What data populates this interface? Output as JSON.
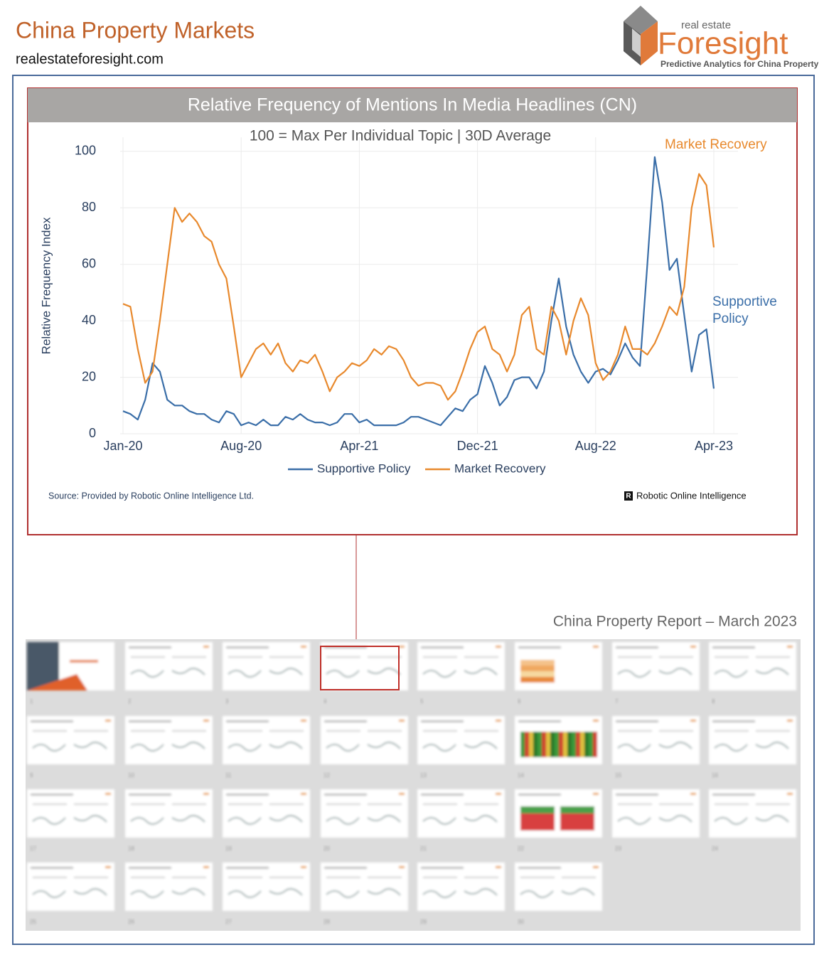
{
  "header": {
    "title": "China Property Markets",
    "url": "realestateforesight.com"
  },
  "logo": {
    "small": "real estate",
    "brand": "Foresight",
    "tagline": "Predictive Analytics for China Property"
  },
  "chart_data": {
    "type": "line",
    "title": "Relative Frequency of Mentions In Media Headlines (CN)",
    "subtitle": "100 = Max Per Individual Topic | 30D Average",
    "y_label": "Relative Frequency Index",
    "categories": [
      "Jan-20",
      null,
      null,
      null,
      null,
      null,
      null,
      null,
      null,
      null,
      null,
      null,
      null,
      null,
      null,
      null,
      "Aug-20",
      null,
      null,
      null,
      null,
      null,
      null,
      null,
      null,
      null,
      null,
      null,
      null,
      null,
      null,
      null,
      "Apr-21",
      null,
      null,
      null,
      null,
      null,
      null,
      null,
      null,
      null,
      null,
      null,
      null,
      null,
      null,
      null,
      "Dec-21",
      null,
      null,
      null,
      null,
      null,
      null,
      null,
      null,
      null,
      null,
      null,
      null,
      null,
      null,
      null,
      "Aug-22",
      null,
      null,
      null,
      null,
      null,
      null,
      null,
      null,
      null,
      null,
      null,
      null,
      null,
      null,
      null,
      "Apr-23"
    ],
    "series": [
      {
        "name": "Supportive Policy",
        "color": "#3a6ea8",
        "values": [
          8,
          7,
          5,
          12,
          25,
          22,
          12,
          10,
          10,
          8,
          7,
          7,
          5,
          4,
          8,
          7,
          3,
          4,
          3,
          5,
          3,
          3,
          6,
          5,
          7,
          5,
          4,
          4,
          3,
          4,
          7,
          7,
          4,
          5,
          3,
          3,
          3,
          3,
          4,
          6,
          6,
          5,
          4,
          3,
          6,
          9,
          8,
          12,
          14,
          24,
          18,
          10,
          13,
          19,
          20,
          20,
          16,
          22,
          40,
          55,
          38,
          28,
          22,
          18,
          22,
          23,
          21,
          26,
          32,
          27,
          24,
          60,
          98,
          82,
          58,
          62,
          42,
          22,
          35,
          37,
          16
        ]
      },
      {
        "name": "Market Recovery",
        "color": "#e8892d",
        "values": [
          46,
          45,
          30,
          18,
          22,
          40,
          60,
          80,
          75,
          78,
          75,
          70,
          68,
          60,
          55,
          38,
          20,
          25,
          30,
          32,
          28,
          32,
          25,
          22,
          26,
          25,
          28,
          22,
          15,
          20,
          22,
          25,
          24,
          26,
          30,
          28,
          31,
          30,
          26,
          20,
          17,
          18,
          18,
          17,
          12,
          15,
          22,
          30,
          36,
          38,
          30,
          28,
          22,
          28,
          42,
          45,
          30,
          28,
          45,
          40,
          28,
          40,
          48,
          42,
          25,
          19,
          22,
          28,
          38,
          30,
          30,
          28,
          32,
          38,
          45,
          42,
          52,
          80,
          92,
          88,
          66
        ]
      }
    ],
    "ylim": [
      0,
      105
    ],
    "yticks": [
      0,
      20,
      40,
      60,
      80,
      100
    ],
    "grid": true,
    "annotations": [
      {
        "text": "Market Recovery",
        "color": "#e8892d"
      },
      {
        "text": "Supportive",
        "color": "#3a6ea8"
      },
      {
        "text": "Policy",
        "color": "#3a6ea8"
      }
    ],
    "source": "Source: Provided by Robotic Online Intelligence Ltd.",
    "credit_mark": "R",
    "credit": "Robotic Online Intelligence"
  },
  "report": {
    "title": "China Property Report – March 2023",
    "pages": [
      1,
      2,
      3,
      4,
      5,
      6,
      7,
      8,
      9,
      10,
      11,
      12,
      13,
      14,
      15,
      16,
      17,
      18,
      19,
      20,
      21,
      22,
      23,
      24,
      25,
      26,
      27,
      28,
      29,
      30
    ]
  }
}
